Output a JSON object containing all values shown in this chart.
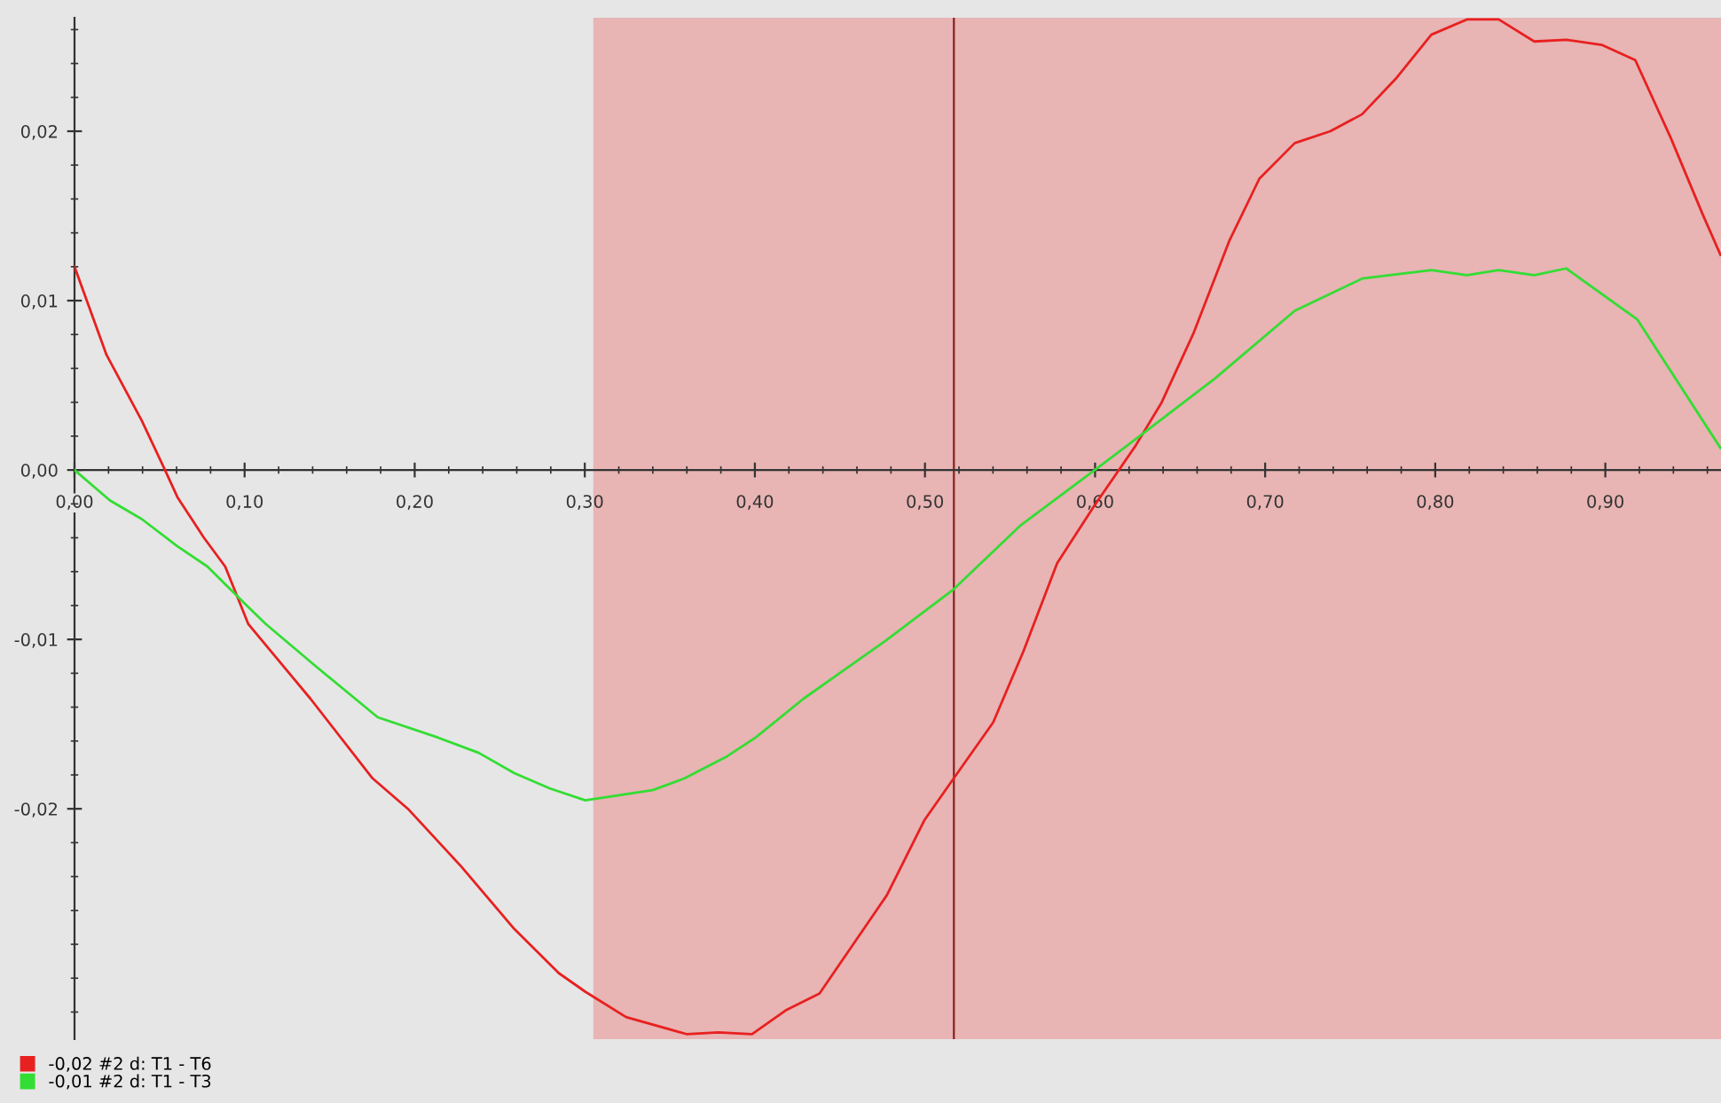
{
  "chart_data": {
    "type": "line",
    "xlim": [
      0,
      0.968
    ],
    "ylim": [
      -0.0336,
      0.0267
    ],
    "xticks": [
      {
        "value": 0,
        "label": "0,00"
      },
      {
        "value": 0.1,
        "label": "0,10"
      },
      {
        "value": 0.2,
        "label": "0,20"
      },
      {
        "value": 0.3,
        "label": "0,30"
      },
      {
        "value": 0.4,
        "label": "0,40"
      },
      {
        "value": 0.5,
        "label": "0,50"
      },
      {
        "value": 0.6,
        "label": "0,60"
      },
      {
        "value": 0.7,
        "label": "0,70"
      },
      {
        "value": 0.8,
        "label": "0,80"
      },
      {
        "value": 0.9,
        "label": "0,90"
      },
      {
        "value": 0.02,
        "label": null
      },
      {
        "value": 0.04,
        "label": null
      },
      {
        "value": 0.06,
        "label": null
      },
      {
        "value": 0.08,
        "label": null
      },
      {
        "value": 0.12,
        "label": null
      },
      {
        "value": 0.14,
        "label": null
      },
      {
        "value": 0.16,
        "label": null
      },
      {
        "value": 0.18,
        "label": null
      },
      {
        "value": 0.22,
        "label": null
      },
      {
        "value": 0.24,
        "label": null
      },
      {
        "value": 0.26,
        "label": null
      },
      {
        "value": 0.28,
        "label": null
      },
      {
        "value": 0.32,
        "label": null
      },
      {
        "value": 0.34,
        "label": null
      },
      {
        "value": 0.36,
        "label": null
      },
      {
        "value": 0.38,
        "label": null
      },
      {
        "value": 0.42,
        "label": null
      },
      {
        "value": 0.44,
        "label": null
      },
      {
        "value": 0.46,
        "label": null
      },
      {
        "value": 0.48,
        "label": null
      },
      {
        "value": 0.52,
        "label": null
      },
      {
        "value": 0.54,
        "label": null
      },
      {
        "value": 0.56,
        "label": null
      },
      {
        "value": 0.58,
        "label": null
      },
      {
        "value": 0.62,
        "label": null
      },
      {
        "value": 0.64,
        "label": null
      },
      {
        "value": 0.66,
        "label": null
      },
      {
        "value": 0.68,
        "label": null
      },
      {
        "value": 0.72,
        "label": null
      },
      {
        "value": 0.74,
        "label": null
      },
      {
        "value": 0.76,
        "label": null
      },
      {
        "value": 0.78,
        "label": null
      },
      {
        "value": 0.82,
        "label": null
      },
      {
        "value": 0.84,
        "label": null
      },
      {
        "value": 0.86,
        "label": null
      },
      {
        "value": 0.88,
        "label": null
      },
      {
        "value": 0.92,
        "label": null
      },
      {
        "value": 0.94,
        "label": null
      },
      {
        "value": 0.96,
        "label": null
      }
    ],
    "yticks": [
      {
        "value": -0.02,
        "label": "-0,02"
      },
      {
        "value": -0.01,
        "label": "-0,01"
      },
      {
        "value": 0,
        "label": "0,00"
      },
      {
        "value": 0.01,
        "label": "0,01"
      },
      {
        "value": 0.02,
        "label": "0,02"
      },
      {
        "value": -0.032,
        "label": null
      },
      {
        "value": -0.03,
        "label": null
      },
      {
        "value": -0.028,
        "label": null
      },
      {
        "value": -0.026,
        "label": null
      },
      {
        "value": -0.024,
        "label": null
      },
      {
        "value": -0.022,
        "label": null
      },
      {
        "value": -0.018,
        "label": null
      },
      {
        "value": -0.016,
        "label": null
      },
      {
        "value": -0.014,
        "label": null
      },
      {
        "value": -0.012,
        "label": null
      },
      {
        "value": -0.008,
        "label": null
      },
      {
        "value": -0.006,
        "label": null
      },
      {
        "value": -0.004,
        "label": null
      },
      {
        "value": -0.002,
        "label": null
      },
      {
        "value": 0.002,
        "label": null
      },
      {
        "value": 0.004,
        "label": null
      },
      {
        "value": 0.006,
        "label": null
      },
      {
        "value": 0.008,
        "label": null
      },
      {
        "value": 0.012,
        "label": null
      },
      {
        "value": 0.014,
        "label": null
      },
      {
        "value": 0.016,
        "label": null
      },
      {
        "value": 0.018,
        "label": null
      },
      {
        "value": 0.022,
        "label": null
      },
      {
        "value": 0.024,
        "label": null
      },
      {
        "value": 0.026,
        "label": null
      }
    ],
    "grid": false,
    "legend": "bottom left",
    "marker": "none",
    "line_style": "solid",
    "bands": [
      {
        "axis": "x",
        "from": 0.305,
        "to": 0.968,
        "color": "#e8b4b4"
      }
    ],
    "ref_lines": [
      {
        "axis": "x",
        "value": 0.517,
        "color": "#8b2020",
        "line_style": "solid"
      }
    ],
    "series": [
      {
        "name": "-0,02 #2 d: T1 - T6",
        "color": "#e82020",
        "x": [
          0,
          0.0188,
          0.0396,
          0.0532,
          0.0605,
          0.0761,
          0.0886,
          0.1022,
          0.1387,
          0.1752,
          0.196,
          0.2273,
          0.2586,
          0.2847,
          0.3003,
          0.3243,
          0.3598,
          0.3785,
          0.3983,
          0.4181,
          0.438,
          0.4776,
          0.4995,
          0.5162,
          0.5401,
          0.5579,
          0.5777,
          0.5996,
          0.6236,
          0.6392,
          0.658,
          0.6788,
          0.6966,
          0.7174,
          0.7383,
          0.757,
          0.7768,
          0.7977,
          0.8186,
          0.8373,
          0.8582,
          0.877,
          0.8978,
          0.9176,
          0.9385,
          0.9572,
          0.9677
        ],
        "values": [
          0.012,
          0.0068,
          0.0029,
          0.0,
          -0.0016,
          -0.004,
          -0.0057,
          -0.0091,
          -0.0135,
          -0.0182,
          -0.02,
          -0.0234,
          -0.0271,
          -0.0297,
          -0.0308,
          -0.0323,
          -0.0333,
          -0.0332,
          -0.0333,
          -0.0319,
          -0.0309,
          -0.0251,
          -0.0207,
          -0.0183,
          -0.0149,
          -0.0107,
          -0.0055,
          -0.0021,
          0.0014,
          0.004,
          0.0081,
          0.0135,
          0.0172,
          0.0193,
          0.02,
          0.021,
          0.0231,
          0.0257,
          0.0266,
          0.0266,
          0.0253,
          0.0254,
          0.0251,
          0.0242,
          0.0196,
          0.0151,
          0.0127
        ]
      },
      {
        "name": "-0,01 #2 d: T1 - T3",
        "color": "#33dd33",
        "x": [
          0,
          0.0209,
          0.0396,
          0.0605,
          0.0782,
          0.1022,
          0.1126,
          0.1408,
          0.1783,
          0.2138,
          0.2377,
          0.2586,
          0.2795,
          0.3003,
          0.3399,
          0.3587,
          0.3837,
          0.4004,
          0.4286,
          0.4765,
          0.5162,
          0.5558,
          0.6038,
          0.6236,
          0.6444,
          0.6705,
          0.7174,
          0.757,
          0.7977,
          0.8186,
          0.8373,
          0.8582,
          0.877,
          0.9187,
          0.9677
        ],
        "values": [
          0,
          -0.0018,
          -0.0029,
          -0.0045,
          -0.0057,
          -0.0081,
          -0.0091,
          -0.0115,
          -0.0146,
          -0.0158,
          -0.0167,
          -0.0179,
          -0.0188,
          -0.0195,
          -0.0189,
          -0.0182,
          -0.0169,
          -0.0158,
          -0.0135,
          -0.0101,
          -0.0071,
          -0.0033,
          0.0003,
          0.0018,
          0.0034,
          0.0054,
          0.0094,
          0.0113,
          0.0118,
          0.0115,
          0.0118,
          0.0115,
          0.0119,
          0.0089,
          0.0013
        ]
      }
    ]
  }
}
